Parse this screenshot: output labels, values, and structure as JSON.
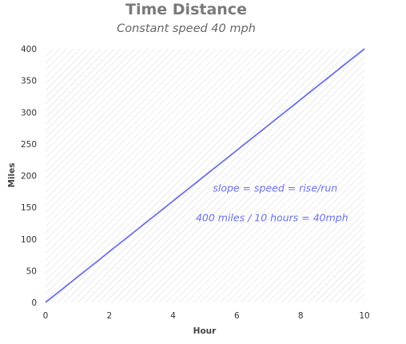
{
  "chart_data": {
    "type": "line",
    "title": "Time Distance",
    "subtitle": "Constant speed 40 mph",
    "xlabel": "Hour",
    "ylabel": "Miles",
    "xlim": [
      0,
      10
    ],
    "ylim": [
      0,
      400
    ],
    "xticks": [
      0,
      2,
      4,
      6,
      8,
      10
    ],
    "yticks": [
      0,
      50,
      100,
      150,
      200,
      250,
      300,
      350,
      400
    ],
    "grid": false,
    "background": "diagonal hatch pattern",
    "series": [
      {
        "x": [
          0,
          10
        ],
        "y": [
          0,
          400
        ],
        "color": "#6b72e8"
      }
    ],
    "annotations": [
      {
        "text": "slope = speed = rise/run",
        "x": 7.2,
        "y": 175,
        "color": "#6b72e8"
      },
      {
        "text": "400 miles / 10 hours = 40mph",
        "x": 7.1,
        "y": 128,
        "color": "#6b72e8"
      }
    ]
  }
}
